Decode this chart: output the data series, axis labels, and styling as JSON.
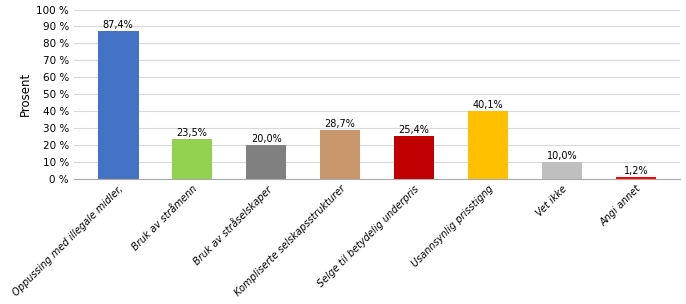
{
  "categories": [
    "Oppussing med illegale midler,",
    "Bruk av stråmenn",
    "Bruk av stråselskaper",
    "Kompliserte selskapsstrukturer",
    "Selge til betydelig underpris",
    "Usannsynlig prisstigng",
    "Vet ikke",
    "Angi annet"
  ],
  "values": [
    87.4,
    23.5,
    20.0,
    28.7,
    25.4,
    40.1,
    10.0,
    1.2
  ],
  "bar_colors": [
    "#4472C4",
    "#92D050",
    "#808080",
    "#C9956B",
    "#C00000",
    "#FFC000",
    "#BFBFBF",
    "#FF0000"
  ],
  "labels": [
    "87,4%",
    "23,5%",
    "20,0%",
    "28,7%",
    "25,4%",
    "40,1%",
    "10,0%",
    "1,2%"
  ],
  "ylabel": "Prosent",
  "ylim": [
    0,
    100
  ],
  "yticks": [
    0,
    10,
    20,
    30,
    40,
    50,
    60,
    70,
    80,
    90,
    100
  ],
  "ytick_labels": [
    "0 %",
    "10 %",
    "20 %",
    "30 %",
    "40 %",
    "50 %",
    "60 %",
    "70 %",
    "80 %",
    "90 %",
    "100 %"
  ],
  "background_color": "#FFFFFF",
  "grid_color": "#D9D9D9"
}
